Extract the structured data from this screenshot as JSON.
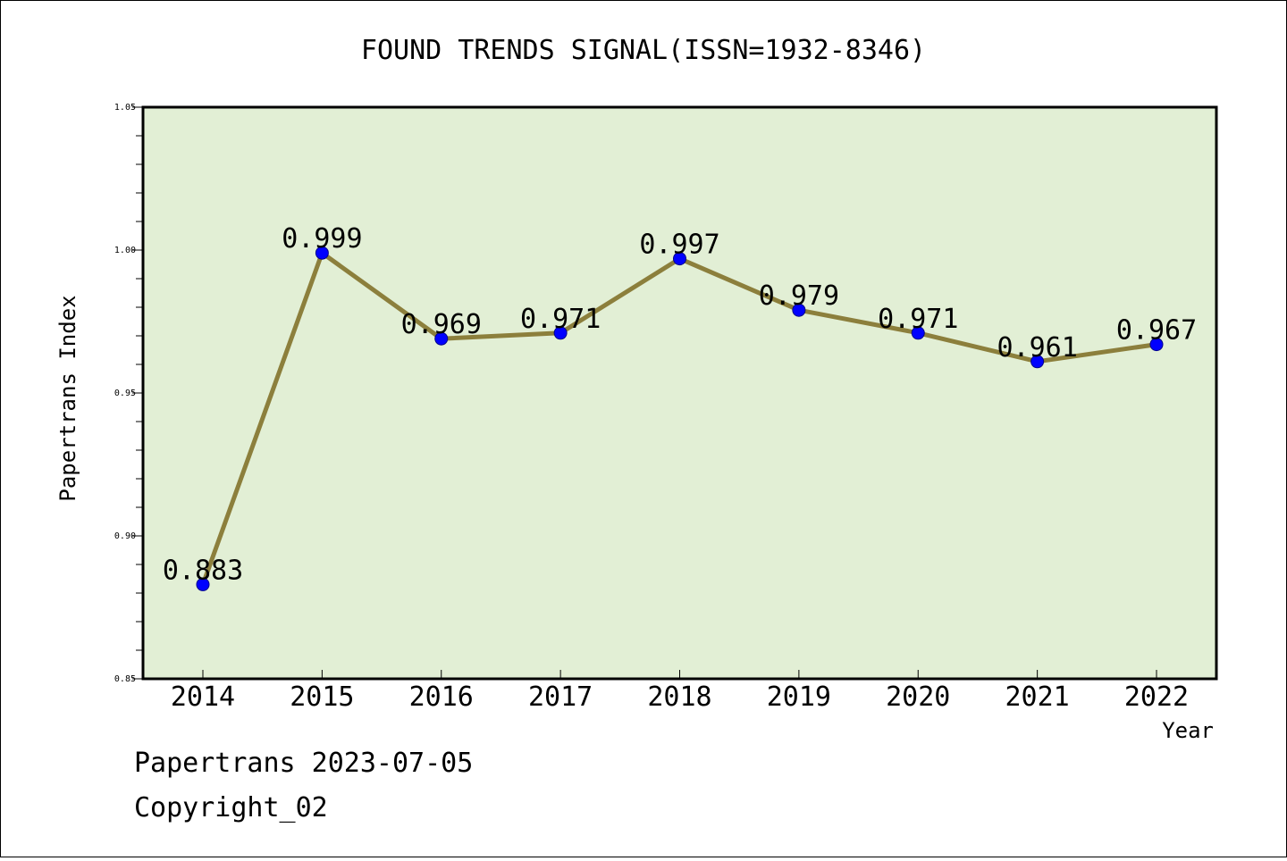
{
  "chart_data": {
    "type": "line",
    "title": "FOUND TRENDS SIGNAL(ISSN=1932-8346)",
    "xlabel": "Year",
    "ylabel": "Papertrans Index",
    "categories": [
      "2014",
      "2015",
      "2016",
      "2017",
      "2018",
      "2019",
      "2020",
      "2021",
      "2022"
    ],
    "series": [
      {
        "values": [
          0.883,
          0.999,
          0.969,
          0.971,
          0.997,
          0.979,
          0.971,
          0.961,
          0.967
        ]
      }
    ],
    "data_labels": [
      "0.883",
      "0.999",
      "0.969",
      "0.971",
      "0.997",
      "0.979",
      "0.971",
      "0.961",
      "0.967"
    ],
    "ylim": [
      0.85,
      1.05
    ],
    "y_ticks": [
      "0.85",
      "0.90",
      "0.95",
      "1.00",
      "1.05"
    ],
    "y_tick_values": [
      0.85,
      0.9,
      0.95,
      1.0,
      1.05
    ],
    "y_minor_step": 0.01,
    "grid": false,
    "legend": "none",
    "colors": {
      "plot_background": "#e2efd5",
      "line": "#8c7f3c",
      "marker": "#0000ff",
      "frame": "#000000"
    }
  },
  "footer": {
    "source": "Papertrans 2023-07-05",
    "copyright": "Copyright_02"
  }
}
